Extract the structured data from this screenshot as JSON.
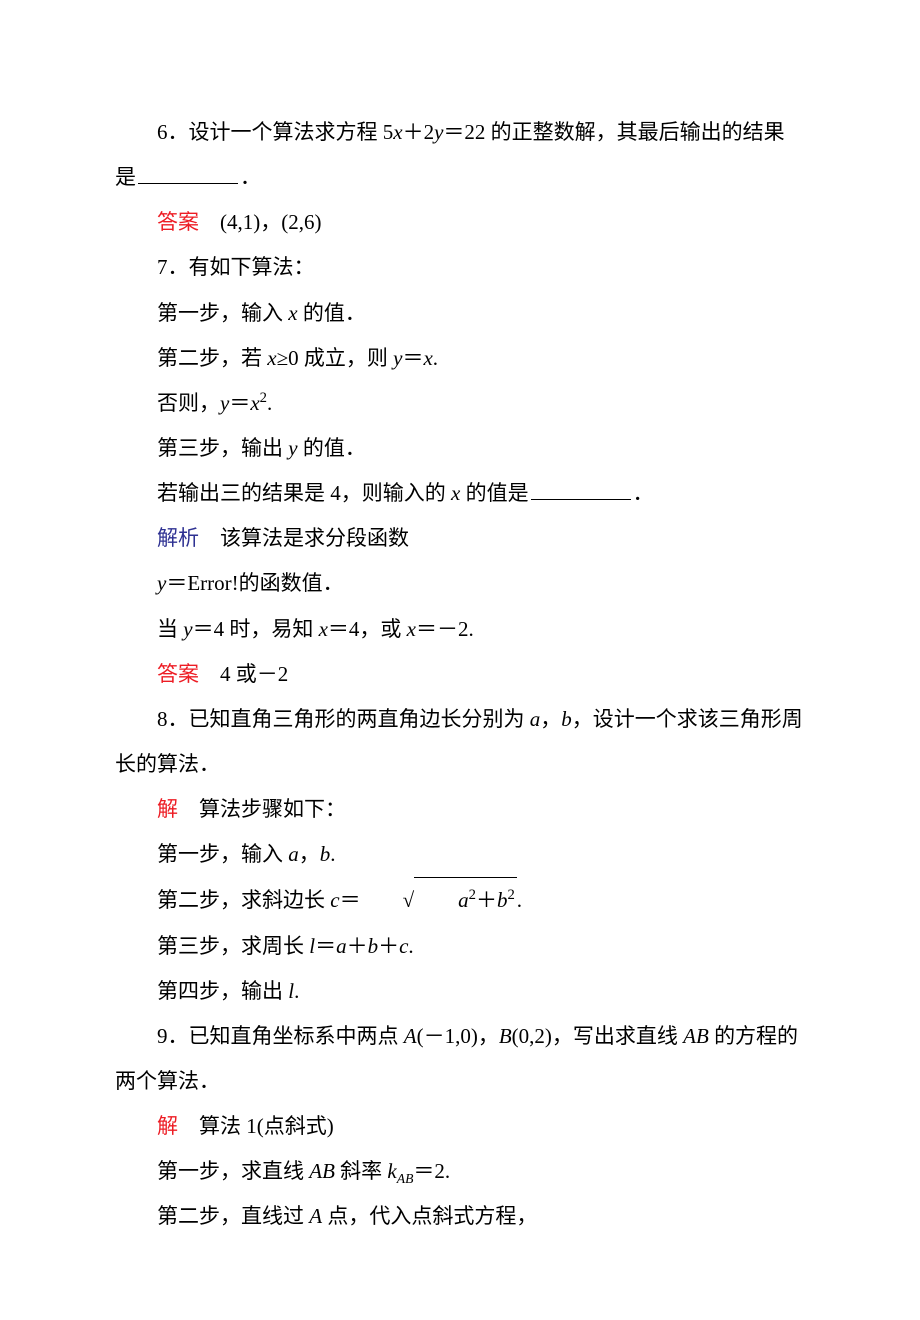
{
  "colors": {
    "text": "#000000",
    "background": "#ffffff",
    "answer_label": "#ed1c24",
    "analysis_label": "#2e3192",
    "solution_label": "#ed1c24"
  },
  "typography": {
    "body_font": "SimSun",
    "math_font": "Times New Roman",
    "font_size_pt": 16,
    "line_height": 2.15
  },
  "labels": {
    "answer": "答案",
    "analysis": "解析",
    "solution": "解"
  },
  "q6": {
    "text_a": "6．设计一个算法求方程 5",
    "var_x": "x",
    "text_b": "＋2",
    "var_y": "y",
    "text_c": "＝22 的正整数解，其最后输出的结果是",
    "text_d": "．",
    "answer_value": "　(4,1)，(2,6)"
  },
  "q7": {
    "text": "7．有如下算法：",
    "step1_a": "第一步，输入 ",
    "step1_var": "x",
    "step1_b": " 的值．",
    "step2_a": "第二步，若 ",
    "step2_varx": "x",
    "step2_b": "≥0 成立，则 ",
    "step2_vary": "y",
    "step2_c": "＝",
    "step2_varx2": "x",
    "step2_d": ".",
    "else_a": "否则，",
    "else_vary": "y",
    "else_b": "＝",
    "else_varx": "x",
    "else_sup": "2",
    "else_c": ".",
    "step3_a": "第三步，输出 ",
    "step3_var": "y",
    "step3_b": " 的值．",
    "cond_a": "若输出三的结果是 4，则输入的 ",
    "cond_var": "x",
    "cond_b": " 的值是",
    "cond_c": "．",
    "analysis_text": "　该算法是求分段函数",
    "func_a": "y",
    "func_eq": "＝Error!",
    "func_b": "的函数值．",
    "when_a": "当 ",
    "when_vary": "y",
    "when_b": "＝4 时，易知 ",
    "when_varx": "x",
    "when_c": "＝4，或 ",
    "when_varx2": "x",
    "when_d": "＝－2.",
    "answer_value": "　4 或－2"
  },
  "q8": {
    "text_a": "8．已知直角三角形的两直角边长分别为 ",
    "var_a": "a",
    "text_b": "，",
    "var_b": "b",
    "text_c": "，设计一个求该三角形周长的算法．",
    "sol_intro": "　算法步骤如下：",
    "step1_a": "第一步，输入 ",
    "step1_va": "a",
    "step1_b": "，",
    "step1_vb": "b",
    "step1_c": ".",
    "step2_a": "第二步，求斜边长 ",
    "step2_vc": "c",
    "step2_b": "＝",
    "sqrt_va": "a",
    "sqrt_sup1": "2",
    "sqrt_plus": "＋",
    "sqrt_vb": "b",
    "sqrt_sup2": "2",
    "step2_c": ".",
    "step3_a": "第三步，求周长 ",
    "step3_vl": "l",
    "step3_b": "＝",
    "step3_va": "a",
    "step3_c": "＋",
    "step3_vb": "b",
    "step3_d": "＋",
    "step3_vc": "c",
    "step3_e": ".",
    "step4_a": "第四步，输出 ",
    "step4_vl": "l",
    "step4_b": "."
  },
  "q9": {
    "text_a": "9．已知直角坐标系中两点 ",
    "var_A": "A",
    "text_b": "(－1,0)，",
    "var_B": "B",
    "text_c": "(0,2)，写出求直线 ",
    "var_AB": "AB",
    "text_d": " 的方程的两个算法．",
    "sol_intro": "　算法 1(点斜式)",
    "step1_a": "第一步，求直线 ",
    "step1_AB": "AB",
    "step1_b": " 斜率 ",
    "step1_k": "k",
    "step1_sub": "AB",
    "step1_c": "＝2.",
    "step2_a": "第二步，直线过 ",
    "step2_A": "A",
    "step2_b": " 点，代入点斜式方程，"
  }
}
